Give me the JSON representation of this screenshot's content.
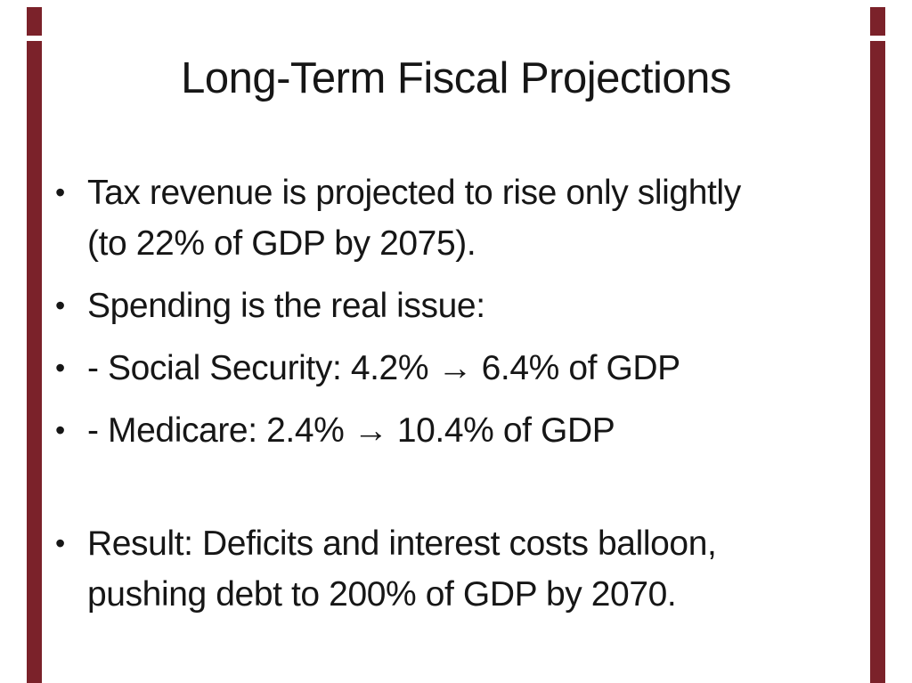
{
  "slide": {
    "title": "Long-Term Fiscal Projections",
    "bullet_char": "•",
    "bullets": [
      {
        "lines": [
          "Tax revenue is projected to rise only slightly",
          "(to 22% of GDP by 2075)."
        ]
      },
      {
        "lines": [
          "Spending is the real issue:"
        ]
      },
      {
        "lines": [
          "- Social Security: 4.2% → 6.4% of GDP"
        ]
      },
      {
        "lines": [
          "- Medicare: 2.4% → 10.4% of GDP"
        ]
      },
      {
        "lines": [
          "Result: Deficits and interest costs balloon,",
          "pushing debt to 200% of GDP by 2070."
        ]
      }
    ],
    "colors": {
      "accent_bar": "#7B222A",
      "background": "#FFFFFF",
      "text": "#161616"
    }
  }
}
